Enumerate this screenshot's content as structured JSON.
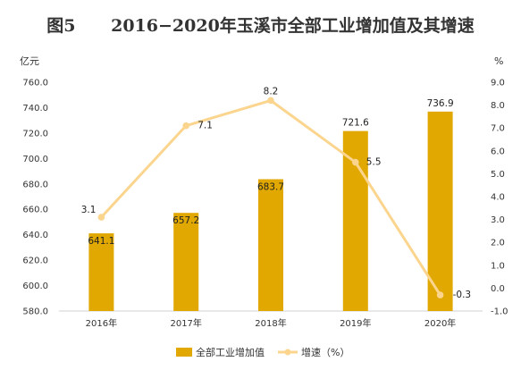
{
  "chart_data": {
    "type": "bar",
    "title": "图5      2016−2020年玉溪市全部工业增加值及其增速",
    "categories": [
      "2016年",
      "2017年",
      "2018年",
      "2019年",
      "2020年"
    ],
    "series": [
      {
        "name": "全部工业增加值",
        "type": "bar",
        "axis": "left",
        "values": [
          641.1,
          657.2,
          683.7,
          721.6,
          736.9
        ],
        "labels": [
          "641.1",
          "657.2",
          "683.7",
          "721.6",
          "736.9"
        ],
        "color": "#E0A800"
      },
      {
        "name": "增速（%）",
        "type": "line",
        "axis": "right",
        "values": [
          3.1,
          7.1,
          8.2,
          5.5,
          -0.3
        ],
        "labels": [
          "3.1",
          "7.1",
          "8.2",
          "5.5",
          "-0.3"
        ],
        "color": "#FBD58E"
      }
    ],
    "y_left": {
      "unit": "亿元",
      "min": 580,
      "max": 760,
      "ticks": [
        "580.0",
        "600.0",
        "620.0",
        "640.0",
        "660.0",
        "680.0",
        "700.0",
        "720.0",
        "740.0",
        "760.0"
      ]
    },
    "y_right": {
      "unit": "%",
      "min": -1,
      "max": 9,
      "ticks": [
        "-1.0",
        "0.0",
        "1.0",
        "2.0",
        "3.0",
        "4.0",
        "5.0",
        "6.0",
        "7.0",
        "8.0",
        "9.0"
      ]
    },
    "grid": false,
    "legend_position": "bottom"
  }
}
